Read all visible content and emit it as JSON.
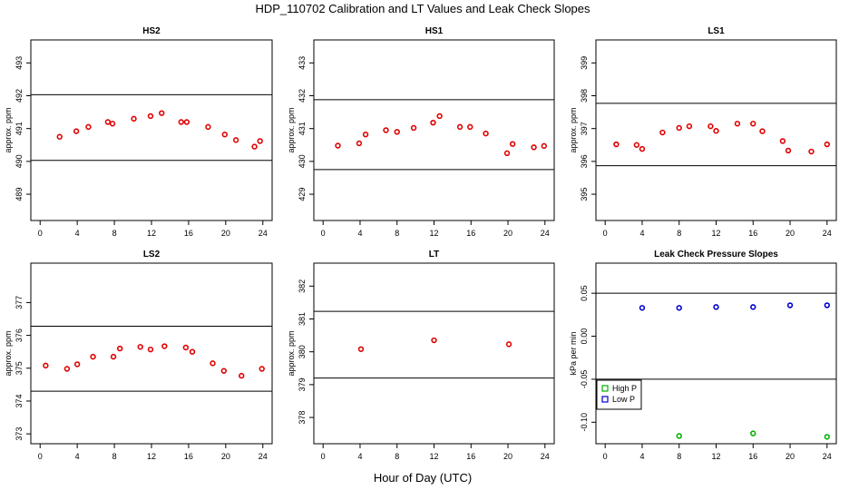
{
  "figure": {
    "title": "HDP_110702  Calibration and LT Values and Leak Check Slopes",
    "xlabel": "Hour of Day (UTC)"
  },
  "chart_data": [
    {
      "type": "scatter",
      "title": "HS2",
      "ylabel": "approx. ppm",
      "xlim": [
        -1,
        25
      ],
      "ylim": [
        488.2,
        493.7
      ],
      "xticks": [
        0,
        4,
        8,
        12,
        16,
        20,
        24
      ],
      "yticks": [
        489,
        490,
        491,
        492,
        493
      ],
      "hlines": [
        490.03,
        492.03
      ],
      "series": [
        {
          "marker": "circle",
          "color": "#e00000",
          "x": [
            2.1,
            3.9,
            5.2,
            7.3,
            7.8,
            10.1,
            11.9,
            13.1,
            15.2,
            15.8,
            18.1,
            19.9,
            21.1,
            23.1,
            23.7
          ],
          "y": [
            490.75,
            490.92,
            491.05,
            491.2,
            491.15,
            491.3,
            491.38,
            491.47,
            491.2,
            491.2,
            491.05,
            490.82,
            490.65,
            490.45,
            490.62
          ]
        }
      ]
    },
    {
      "type": "scatter",
      "title": "HS1",
      "ylabel": "approx. ppm",
      "xlim": [
        -1,
        25
      ],
      "ylim": [
        428.2,
        433.7
      ],
      "xticks": [
        0,
        4,
        8,
        12,
        16,
        20,
        24
      ],
      "yticks": [
        429,
        430,
        431,
        432,
        433
      ],
      "hlines": [
        429.75,
        431.88
      ],
      "series": [
        {
          "marker": "circle",
          "color": "#e00000",
          "x": [
            1.6,
            3.9,
            4.6,
            6.8,
            8.0,
            9.8,
            11.9,
            12.6,
            14.8,
            15.9,
            17.6,
            19.9,
            20.5,
            22.8,
            23.9
          ],
          "y": [
            430.48,
            430.55,
            430.82,
            430.95,
            430.9,
            431.02,
            431.18,
            431.38,
            431.05,
            431.05,
            430.85,
            430.25,
            430.53,
            430.43,
            430.47
          ]
        }
      ]
    },
    {
      "type": "scatter",
      "title": "LS1",
      "ylabel": "approx. ppm",
      "xlim": [
        -1,
        25
      ],
      "ylim": [
        394.2,
        399.7
      ],
      "xticks": [
        0,
        4,
        8,
        12,
        16,
        20,
        24
      ],
      "yticks": [
        395,
        396,
        397,
        398,
        399
      ],
      "hlines": [
        395.87,
        397.77
      ],
      "series": [
        {
          "marker": "circle",
          "color": "#e00000",
          "x": [
            1.2,
            3.4,
            4.0,
            6.2,
            8.0,
            9.1,
            11.4,
            12.0,
            14.3,
            16.0,
            17.0,
            19.2,
            19.8,
            22.3,
            24.0
          ],
          "y": [
            396.52,
            396.5,
            396.38,
            396.88,
            397.02,
            397.07,
            397.07,
            396.93,
            397.15,
            397.15,
            396.92,
            396.62,
            396.33,
            396.3,
            396.52
          ]
        }
      ]
    },
    {
      "type": "scatter",
      "title": "LS2",
      "ylabel": "approx. ppm",
      "xlim": [
        -1,
        25
      ],
      "ylim": [
        372.7,
        378.2
      ],
      "xticks": [
        0,
        4,
        8,
        12,
        16,
        20,
        24
      ],
      "yticks": [
        373,
        374,
        375,
        376,
        377
      ],
      "hlines": [
        374.3,
        376.28
      ],
      "series": [
        {
          "marker": "circle",
          "color": "#e00000",
          "x": [
            0.6,
            2.9,
            4.0,
            5.7,
            7.9,
            8.6,
            10.8,
            11.9,
            13.4,
            15.7,
            16.4,
            18.6,
            19.8,
            21.7,
            23.9
          ],
          "y": [
            375.08,
            374.98,
            375.12,
            375.35,
            375.35,
            375.6,
            375.65,
            375.57,
            375.67,
            375.63,
            375.5,
            375.15,
            374.92,
            374.77,
            374.98
          ]
        }
      ]
    },
    {
      "type": "scatter",
      "title": "LT",
      "ylabel": "approx. ppm",
      "xlim": [
        -1,
        25
      ],
      "ylim": [
        377.2,
        382.7
      ],
      "xticks": [
        0,
        4,
        8,
        12,
        16,
        20,
        24
      ],
      "yticks": [
        378,
        379,
        380,
        381,
        382
      ],
      "hlines": [
        379.2,
        381.23
      ],
      "series": [
        {
          "marker": "circle",
          "color": "#e00000",
          "x": [
            4.1,
            12.0,
            20.1
          ],
          "y": [
            380.08,
            380.35,
            380.23
          ]
        }
      ]
    },
    {
      "type": "scatter",
      "title": "Leak Check Pressure Slopes",
      "ylabel": "kPa per min",
      "xlim": [
        -1,
        25
      ],
      "ylim": [
        -0.125,
        0.085
      ],
      "xticks": [
        0,
        4,
        8,
        12,
        16,
        20,
        24
      ],
      "yticks": [
        -0.1,
        -0.05,
        0.0,
        0.05
      ],
      "ytick_labels": [
        "-0.10",
        "-0.05",
        "0.00",
        "0.05"
      ],
      "hlines": [
        0.05,
        -0.05
      ],
      "legend": {
        "position": "bottom-left",
        "entries": [
          "High P",
          "Low P"
        ]
      },
      "series": [
        {
          "name": "High P",
          "marker": "circle",
          "color": "#00b000",
          "x": [
            8.0,
            16.0,
            24.0
          ],
          "y": [
            -0.116,
            -0.113,
            -0.117
          ]
        },
        {
          "name": "Low P",
          "marker": "circle",
          "color": "#0000d0",
          "x": [
            4.0,
            8.0,
            12.0,
            16.0,
            20.0,
            24.0
          ],
          "y": [
            0.033,
            0.033,
            0.034,
            0.034,
            0.036,
            0.036
          ]
        }
      ]
    }
  ]
}
